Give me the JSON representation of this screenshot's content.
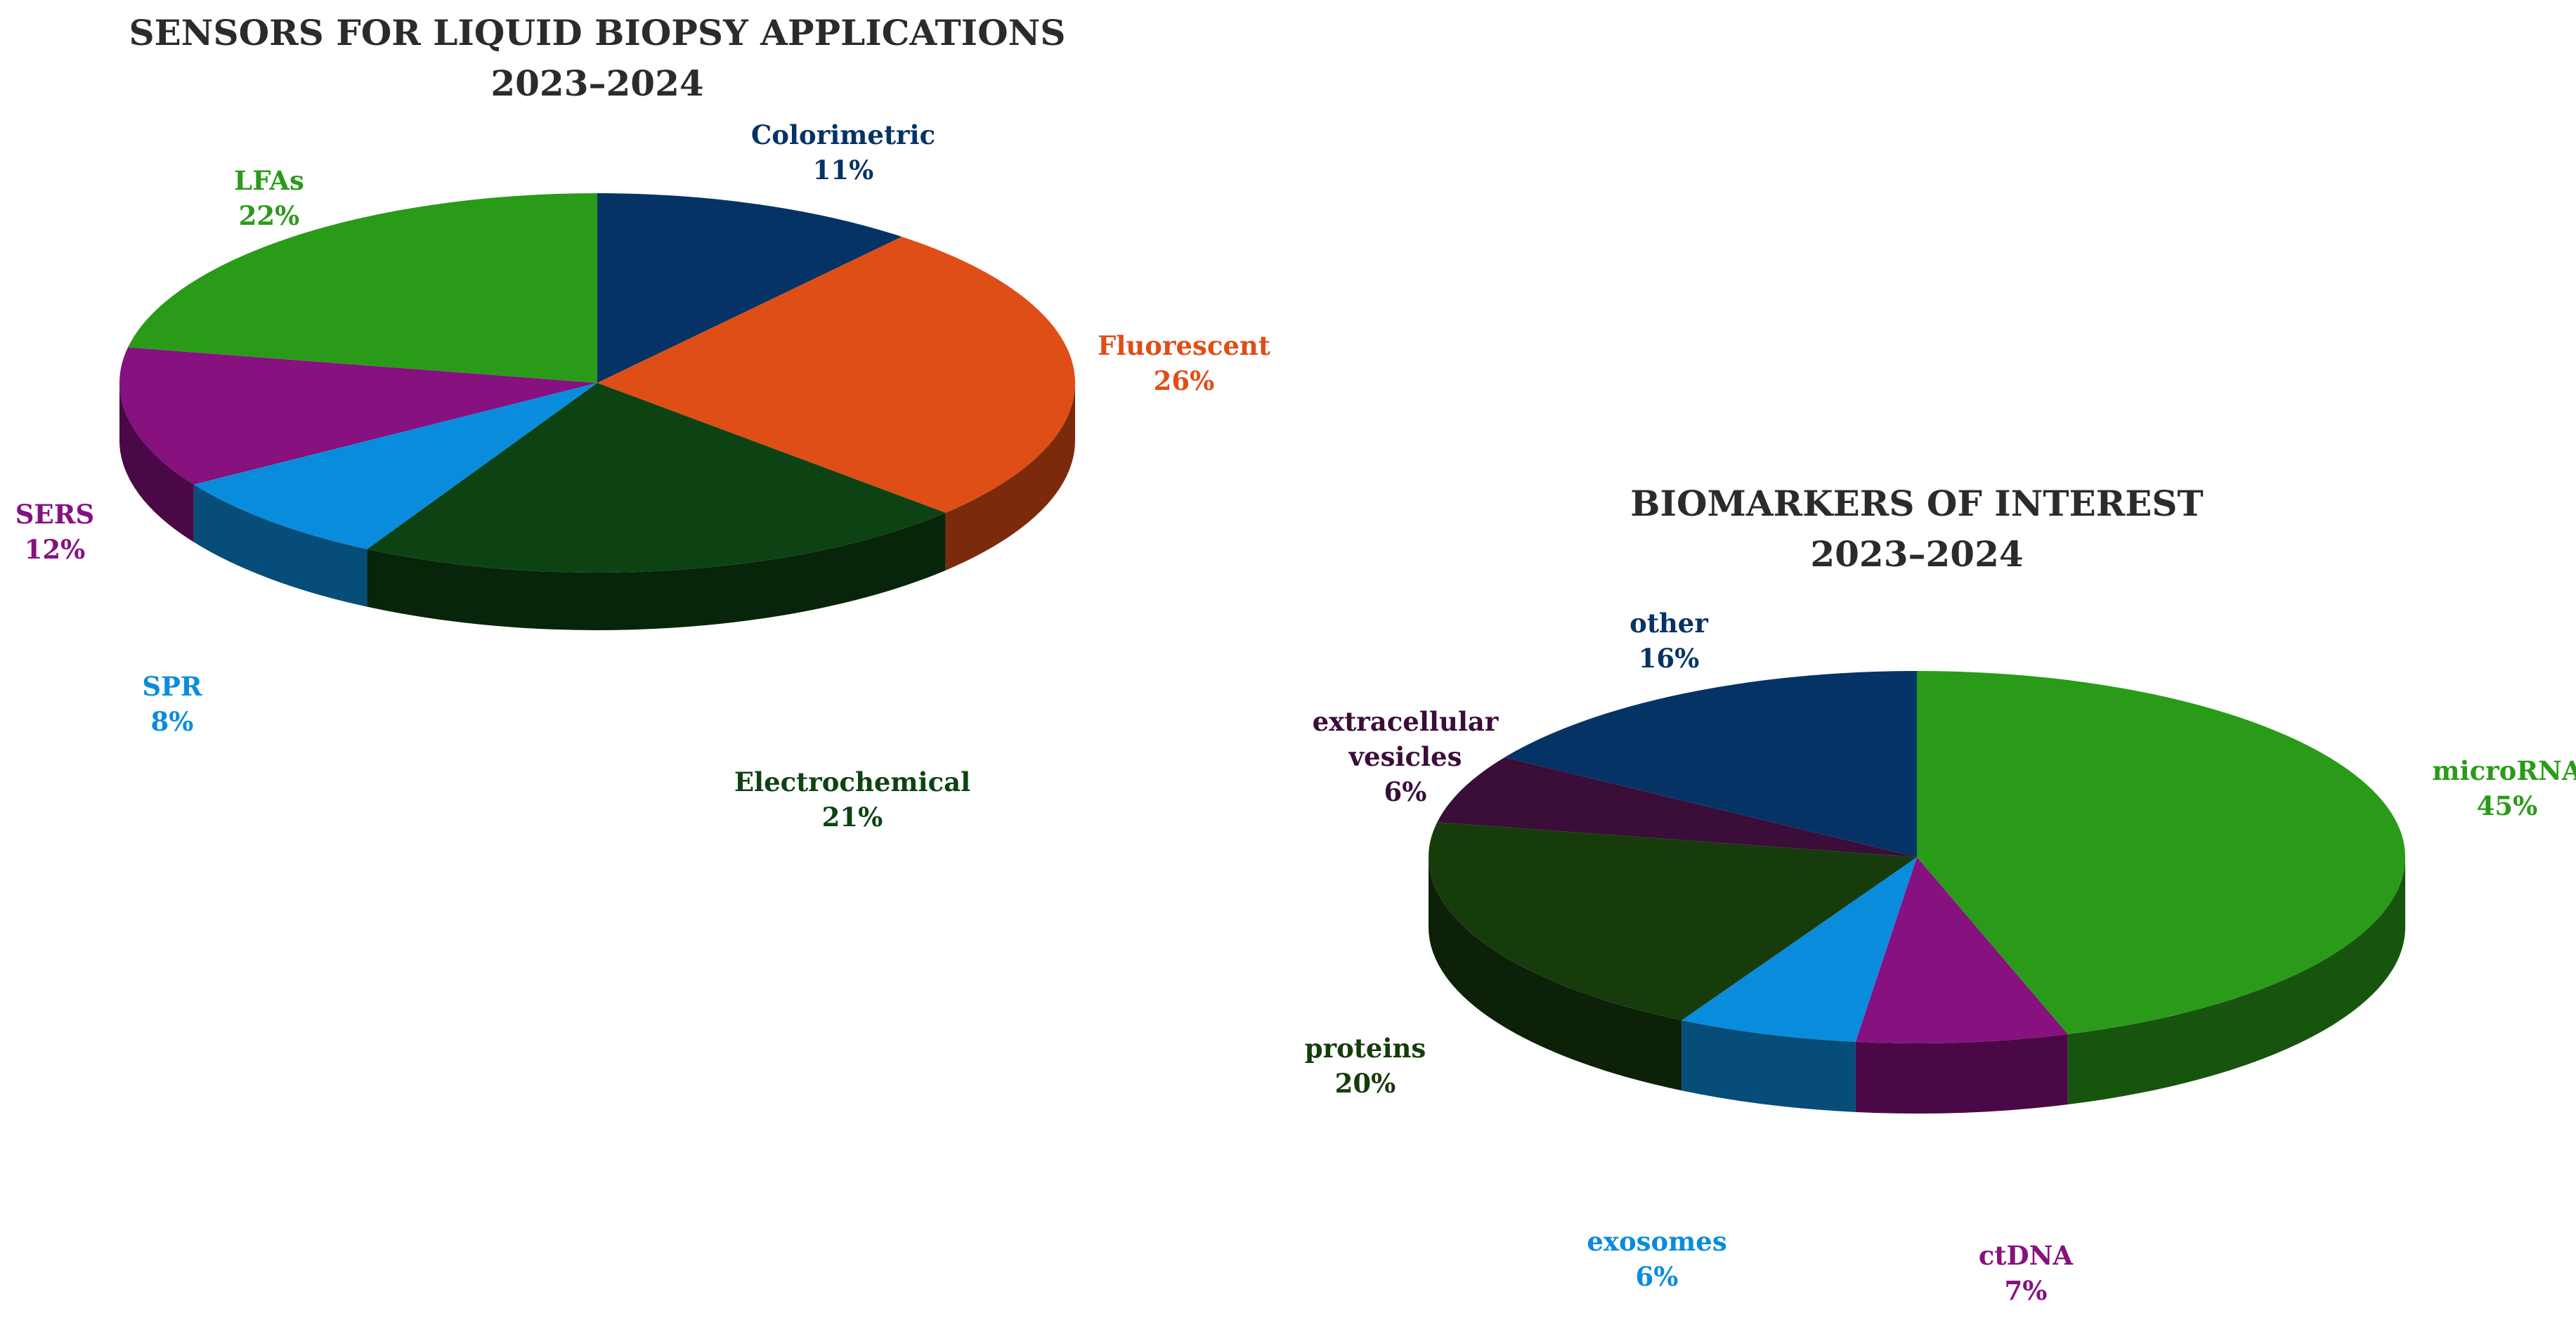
{
  "chart_data": [
    {
      "type": "pie",
      "title": "SENSORS FOR LIQUID BIOPSY APPLICATIONS",
      "subtitle": "2023–2024",
      "slices": [
        {
          "label": "Colorimetric",
          "value": 11,
          "value_label": "11%",
          "color": "#063366"
        },
        {
          "label": "Fluorescent",
          "value": 26,
          "value_label": "26%",
          "color": "#DF4E16"
        },
        {
          "label": "Electrochemical",
          "value": 21,
          "value_label": "21%",
          "color": "#0D4313"
        },
        {
          "label": "SPR",
          "value": 8,
          "value_label": "8%",
          "color": "#0A8CDC"
        },
        {
          "label": "SERS",
          "value": 12,
          "value_label": "12%",
          "color": "#86117F"
        },
        {
          "label": "LFAs",
          "value": 22,
          "value_label": "22%",
          "color": "#2A9B19"
        }
      ],
      "start_angle_deg": 0,
      "direction": "clockwise",
      "style": "3d"
    },
    {
      "type": "pie",
      "title": "BIOMARKERS OF INTEREST",
      "subtitle": "2023–2024",
      "slices": [
        {
          "label": "microRNA",
          "value": 45,
          "value_label": "45%",
          "color": "#2A9B19"
        },
        {
          "label": "ctDNA",
          "value": 7,
          "value_label": "7%",
          "color": "#86117F"
        },
        {
          "label": "exosomes",
          "value": 6,
          "value_label": "6%",
          "color": "#0A8CDC"
        },
        {
          "label": "proteins",
          "value": 20,
          "value_label": "20%",
          "color": "#163C0C"
        },
        {
          "label": "extracellular\nvesicles",
          "value": 6,
          "value_label": "6%",
          "color": "#3A0E38"
        },
        {
          "label": "other",
          "value": 16,
          "value_label": "16%",
          "color": "#063366"
        }
      ],
      "start_angle_deg": 0,
      "direction": "clockwise",
      "style": "3d"
    }
  ]
}
